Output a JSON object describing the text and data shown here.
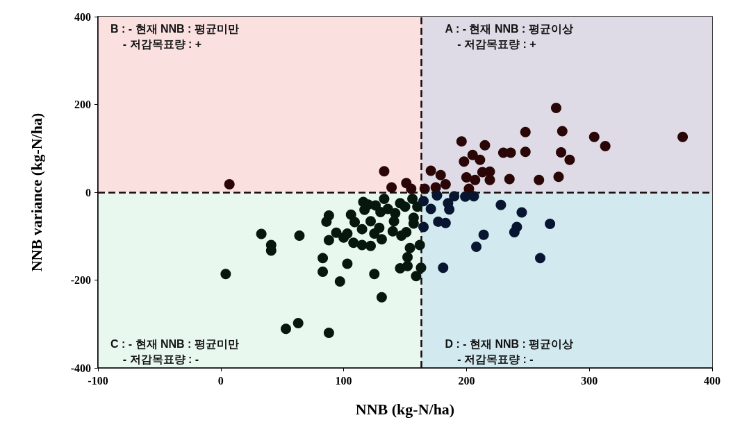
{
  "chart_data": {
    "type": "scatter",
    "xlabel": "NNB (kg-N/ha)",
    "ylabel": "NNB variance (kg-N/ha)",
    "xlim": [
      -100,
      400
    ],
    "xticks": [
      -100,
      0,
      100,
      200,
      300,
      400
    ],
    "ylim": [
      -400,
      400
    ],
    "yticks": [
      -400,
      -200,
      0,
      200,
      400
    ],
    "grid": false,
    "marker": "circle",
    "annotations": [
      "B : - 현재 NNB : 평균미만\n    - 저감목표량 : +",
      "A : - 현재 NNB : 평균이상\n    - 저감목표량 : +",
      "C : - 현재 NNB : 평균미만\n    - 저감목표량 : -",
      "D : - 현재 NNB : 평균이상\n    - 저감목표량 : -"
    ],
    "bands": [
      {
        "axis": "y",
        "from": 0,
        "to": 400,
        "color": "#fbe0e0"
      },
      {
        "axis": "y",
        "from": -400,
        "to": 0,
        "color": "#e9f8ef"
      },
      {
        "axis": "x",
        "from": 163,
        "to": 400,
        "color": "#a9cdf0"
      }
    ],
    "ref_lines": [
      {
        "axis": "x",
        "value": 163,
        "color": "#1a0808",
        "line_style": "dashed"
      },
      {
        "axis": "y",
        "value": 0,
        "color": "#1a0808",
        "line_style": "dashed"
      }
    ],
    "series": [
      {
        "color": "#2a0606",
        "x": [
          7,
          133,
          273,
          248,
          278,
          304,
          376,
          313,
          196,
          215,
          230,
          236,
          248,
          277,
          284,
          205,
          198,
          211,
          171,
          179,
          213,
          219,
          200,
          207,
          219,
          235,
          259,
          275,
          183,
          202,
          166,
          175,
          139,
          151,
          155
        ],
        "values": [
          18,
          48,
          192,
          137,
          139,
          126,
          126,
          105,
          116,
          107,
          90,
          90,
          92,
          91,
          74,
          85,
          70,
          74,
          49,
          39,
          46,
          47,
          34,
          28,
          28,
          30,
          28,
          35,
          18,
          8,
          8,
          11,
          11,
          21,
          8
        ]
      },
      {
        "color": "#06170d",
        "x": [
          4,
          33,
          41,
          41,
          64,
          83,
          83,
          88,
          86,
          88,
          97,
          103,
          94,
          100,
          103,
          106,
          109,
          115,
          108,
          115,
          122,
          116,
          117,
          122,
          125,
          131,
          126,
          130,
          129,
          125,
          131,
          133,
          136,
          142,
          141,
          140,
          147,
          151,
          146,
          150,
          156,
          160,
          157,
          157,
          154,
          152,
          152,
          146,
          159,
          162,
          163,
          53,
          63,
          88,
          120
        ],
        "values": [
          -186,
          -95,
          -120,
          -133,
          -99,
          -150,
          -181,
          -53,
          -67,
          -109,
          -203,
          -163,
          -92,
          -103,
          -94,
          -51,
          -68,
          -84,
          -115,
          -120,
          -122,
          -22,
          -40,
          -66,
          -186,
          -239,
          -30,
          -45,
          -81,
          -94,
          -107,
          -15,
          -38,
          -48,
          -66,
          -89,
          -99,
          -91,
          -25,
          -33,
          -15,
          -33,
          -58,
          -71,
          -127,
          -148,
          -168,
          -173,
          -191,
          -120,
          -172,
          -311,
          -298,
          -320,
          -28
        ]
      },
      {
        "color": "#071530",
        "x": [
          165,
          171,
          185,
          186,
          199,
          206,
          190,
          176,
          228,
          245,
          268,
          177,
          183,
          165,
          241,
          239,
          214,
          208,
          260,
          181
        ],
        "values": [
          -20,
          -38,
          -25,
          -39,
          -10,
          -9,
          -9,
          -7,
          -29,
          -46,
          -72,
          -67,
          -70,
          -79,
          -79,
          -91,
          -97,
          -124,
          -150,
          -172
        ]
      }
    ]
  }
}
